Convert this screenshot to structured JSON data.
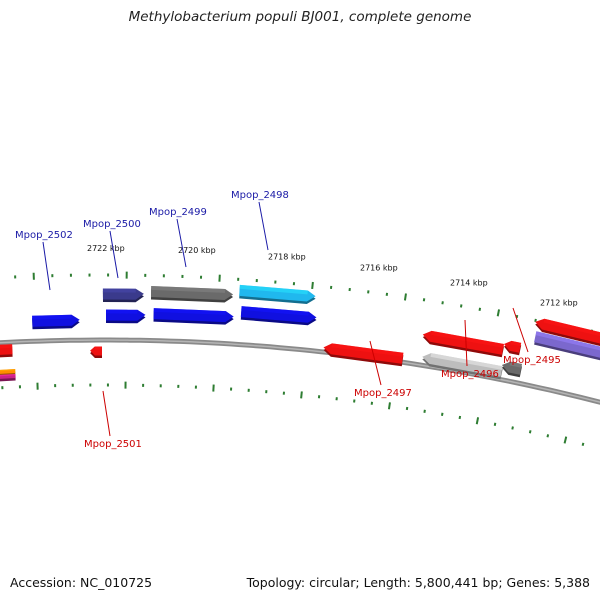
{
  "title": "Methylobacterium populi BJ001, complete genome",
  "footer": {
    "accession": "Accession: NC_010725",
    "topology": "Topology: circular; Length: 5,800,441 bp; Genes: 5,388"
  },
  "colors": {
    "backbone": "#8a8a8a",
    "tick": "#2e7d32",
    "label_forward": "#1a1aa6",
    "label_reverse": "#cc0000",
    "gene_blue": "#1010e0",
    "gene_navy": "#3a3a8c",
    "gene_gray": "#6a6a6a",
    "gene_cyan": "#20b8ee",
    "gene_red": "#ee1111",
    "gene_lightgray": "#bdbdbd",
    "gene_slate": "#7b68ce"
  },
  "kbp_labels": [
    "2722 kbp",
    "2720 kbp",
    "2718 kbp",
    "2716 kbp",
    "2714 kbp",
    "2712 kbp"
  ],
  "gene_labels": {
    "forward": [
      "Mpop_2502",
      "Mpop_2500",
      "Mpop_2499",
      "Mpop_2498"
    ],
    "reverse": [
      "Mpop_2501",
      "Mpop_2497",
      "Mpop_2496",
      "Mpop_2495"
    ]
  }
}
